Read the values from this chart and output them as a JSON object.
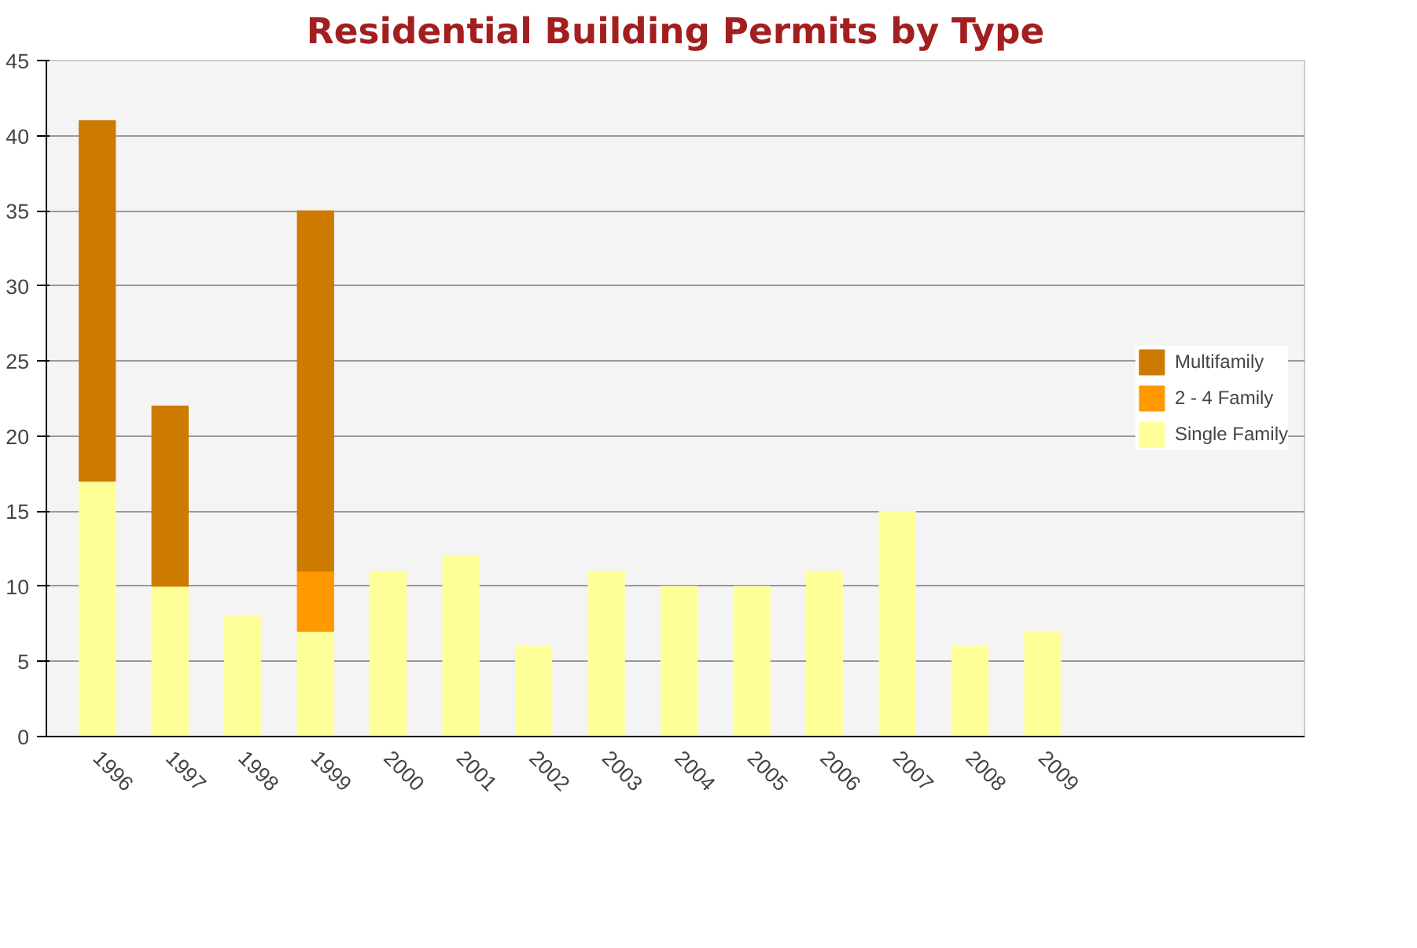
{
  "chart_data": {
    "type": "bar",
    "title": "Residential Building Permits by Type",
    "stacked": true,
    "categories": [
      "1996",
      "1997",
      "1998",
      "1999",
      "2000",
      "2001",
      "2002",
      "2003",
      "2004",
      "2005",
      "2006",
      "2007",
      "2008",
      "2009"
    ],
    "series": [
      {
        "name": "Single Family",
        "color": "#ffff99",
        "values": [
          17,
          10,
          8,
          7,
          11,
          12,
          6,
          11,
          10,
          10,
          11,
          15,
          6,
          7
        ]
      },
      {
        "name": "2 - 4 Family",
        "color": "#ff9900",
        "values": [
          null,
          null,
          null,
          4,
          null,
          null,
          null,
          null,
          null,
          null,
          null,
          null,
          null,
          null
        ]
      },
      {
        "name": "Multifamily",
        "color": "#cc7a00",
        "values": [
          24,
          12,
          null,
          24,
          null,
          null,
          null,
          null,
          null,
          null,
          null,
          null,
          null,
          null
        ]
      }
    ],
    "ylim": [
      0,
      45
    ],
    "yticks": [
      0,
      5,
      10,
      15,
      20,
      25,
      30,
      35,
      40,
      45
    ],
    "grid": "y",
    "legend": "right"
  }
}
